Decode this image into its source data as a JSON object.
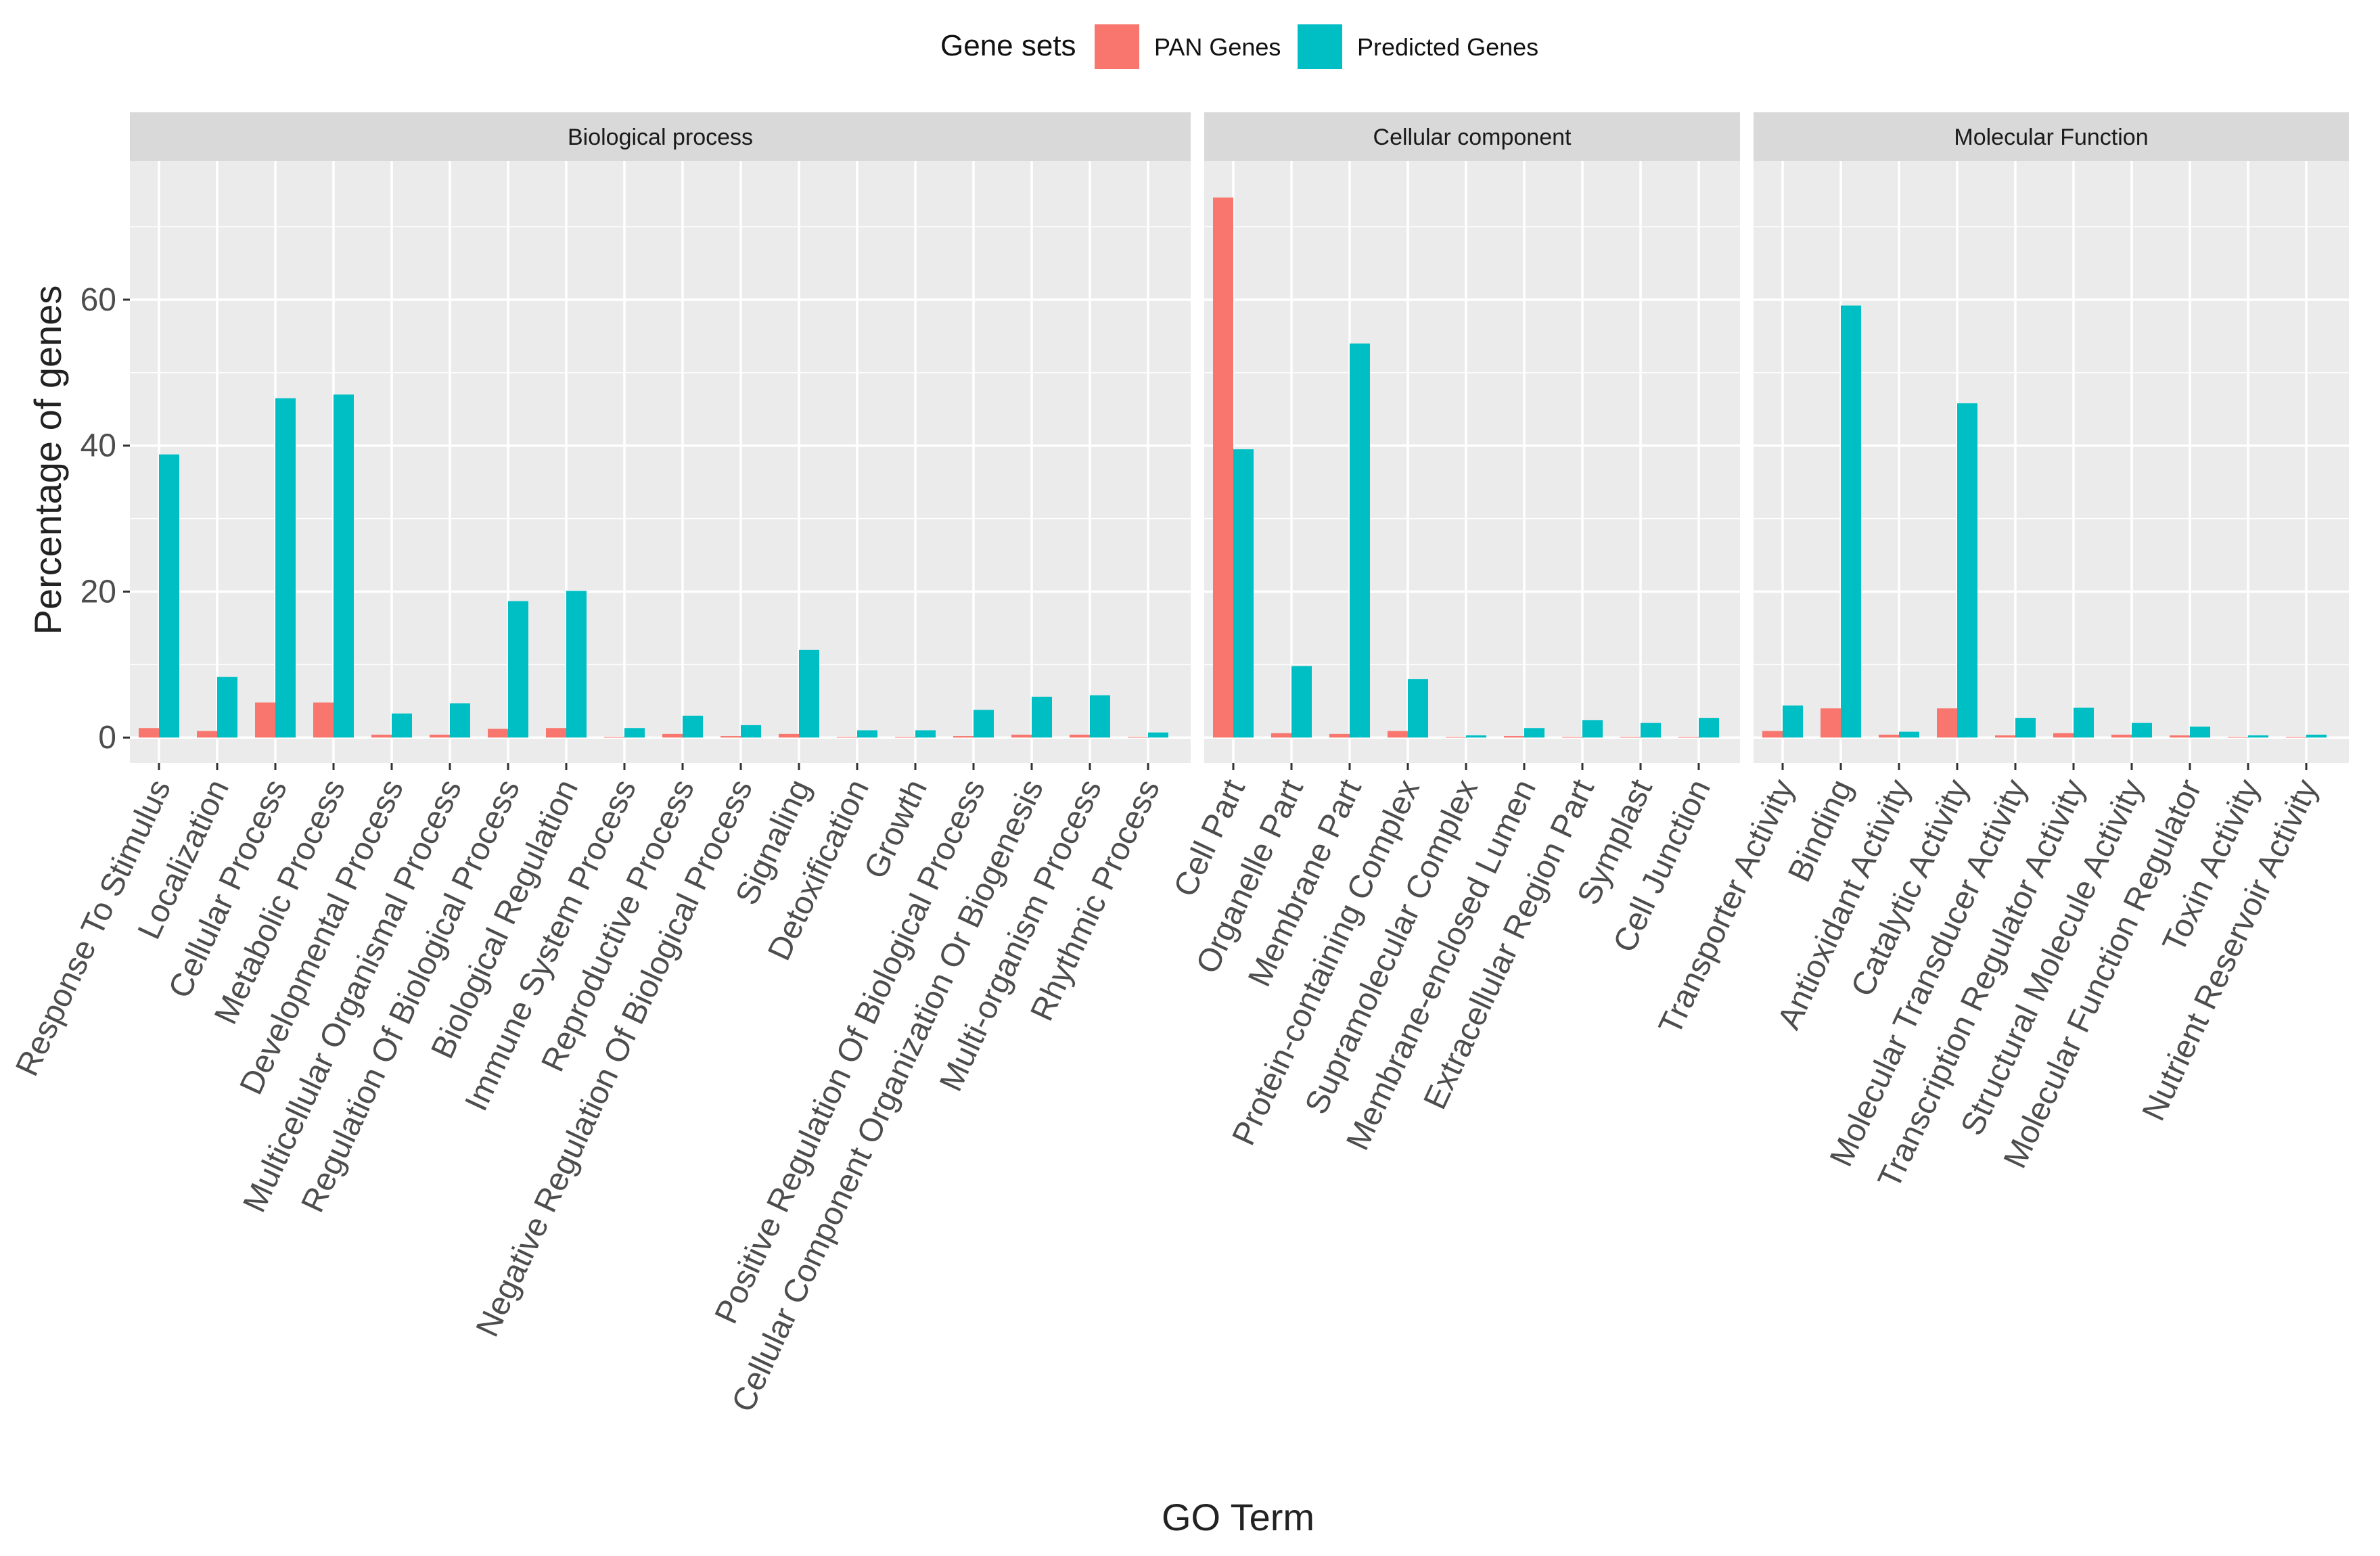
{
  "chart_data": {
    "type": "bar",
    "title": "",
    "xlabel": "GO Term",
    "ylabel": "Percentage of genes",
    "ylim": [
      -3.5,
      79
    ],
    "yticks": [
      0,
      20,
      40,
      60
    ],
    "grid": true,
    "legend": {
      "title": "Gene sets",
      "placement": "top",
      "entries": [
        {
          "name": "PAN Genes",
          "color": "#F8766D"
        },
        {
          "name": "Predicted Genes",
          "color": "#00BFC4"
        }
      ]
    },
    "series_names": [
      "PAN Genes",
      "Predicted Genes"
    ],
    "colors": {
      "PAN Genes": "#F8766D",
      "Predicted Genes": "#00BFC4",
      "panel_bg": "#EBEBEB",
      "strip_bg": "#D9D9D9"
    },
    "facets": [
      {
        "label": "Biological process",
        "categories": [
          "Response To Stimulus",
          "Localization",
          "Cellular Process",
          "Metabolic Process",
          "Developmental Process",
          "Multicellular Organismal Process",
          "Regulation Of Biological Process",
          "Biological Regulation",
          "Immune System Process",
          "Reproductive Process",
          "Negative Regulation Of Biological Process",
          "Signaling",
          "Detoxification",
          "Growth",
          "Positive Regulation Of Biological Process",
          "Cellular Component Organization Or Biogenesis",
          "Multi-organism Process",
          "Rhythmic Process"
        ],
        "pan": [
          1.3,
          0.9,
          4.8,
          4.8,
          0.4,
          0.4,
          1.2,
          1.3,
          0.1,
          0.5,
          0.2,
          0.5,
          0.1,
          0.1,
          0.2,
          0.4,
          0.4,
          0.1
        ],
        "predicted": [
          38.8,
          8.3,
          46.5,
          47.0,
          3.3,
          4.7,
          18.7,
          20.1,
          1.3,
          3.0,
          1.7,
          12.0,
          1.0,
          1.0,
          3.8,
          5.6,
          5.8,
          0.7
        ]
      },
      {
        "label": "Cellular component",
        "categories": [
          "Cell Part",
          "Organelle Part",
          "Membrane Part",
          "Protein-containing Complex",
          "Supramolecular Complex",
          "Membrane-enclosed Lumen",
          "Extracellular Region Part",
          "Symplast",
          "Cell Junction"
        ],
        "pan": [
          74.0,
          0.6,
          0.5,
          0.9,
          0.1,
          0.2,
          0.1,
          0.1,
          0.1
        ],
        "predicted": [
          39.5,
          9.8,
          54.0,
          8.0,
          0.3,
          1.3,
          2.4,
          2.0,
          2.7
        ]
      },
      {
        "label": "Molecular Function",
        "categories": [
          "Transporter Activity",
          "Binding",
          "Antioxidant Activity",
          "Catalytic Activity",
          "Molecular Transducer Activity",
          "Transcription Regulator Activity",
          "Structural Molecule Activity",
          "Molecular Function Regulator",
          "Toxin Activity",
          "Nutrient Reservoir Activity"
        ],
        "pan": [
          0.9,
          4.0,
          0.4,
          4.0,
          0.3,
          0.6,
          0.4,
          0.3,
          0.1,
          0.1
        ],
        "predicted": [
          4.4,
          59.2,
          0.8,
          45.8,
          2.7,
          4.1,
          2.0,
          1.5,
          0.3,
          0.4
        ]
      }
    ]
  }
}
